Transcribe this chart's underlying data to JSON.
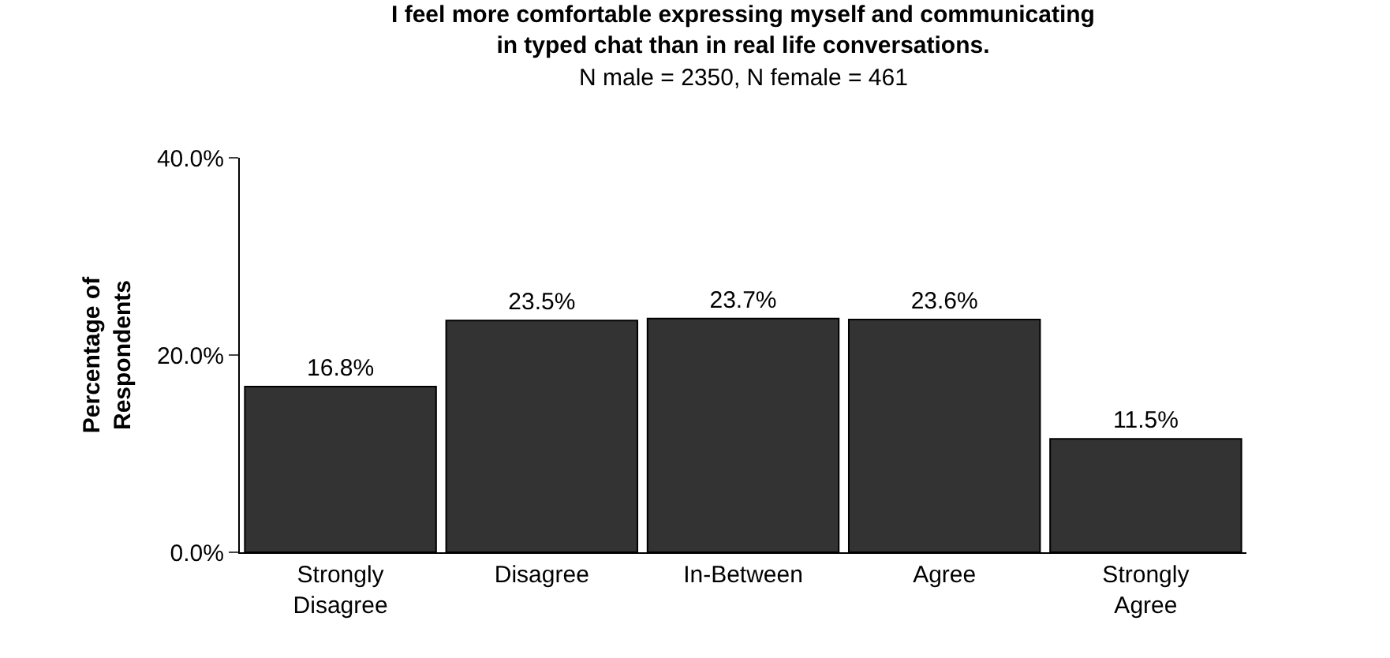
{
  "chart_data": {
    "type": "bar",
    "title": "I feel more comfortable expressing myself and communicating\nin typed chat than in real life conversations.",
    "subtitle": "N male = 2350, N female = 461",
    "ylabel": "Percentage of\nRespondents",
    "categories": [
      "Strongly\nDisagree",
      "Disagree",
      "In-Between",
      "Agree",
      "Strongly\nAgree"
    ],
    "values": [
      16.8,
      23.5,
      23.7,
      23.6,
      11.5
    ],
    "value_labels": [
      "16.8%",
      "23.5%",
      "23.7%",
      "23.6%",
      "11.5%"
    ],
    "color": "#333333",
    "ylim": [
      0,
      40
    ],
    "yticks": [
      {
        "value": 0,
        "label": "0.0%"
      },
      {
        "value": 20,
        "label": "20.0%"
      },
      {
        "value": 40,
        "label": "40.0%"
      }
    ],
    "legend": false
  }
}
